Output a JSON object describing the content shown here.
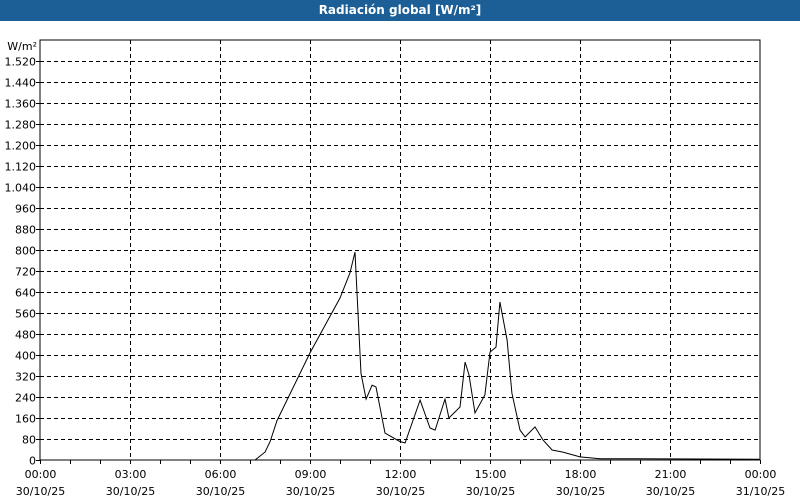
{
  "window": {
    "title": "Radiación global [W/m²]"
  },
  "chart_data": {
    "type": "line",
    "title": "Radiación global [W/m²]",
    "ylabel": "W/m²",
    "ylim": [
      0,
      1520
    ],
    "yticks": [
      0,
      80,
      160,
      240,
      320,
      400,
      480,
      560,
      640,
      720,
      800,
      880,
      960,
      1040,
      1120,
      1200,
      1280,
      1360,
      1440,
      1520
    ],
    "ytick_labels": [
      "0",
      "80",
      "160",
      "240",
      "320",
      "400",
      "480",
      "560",
      "640",
      "720",
      "800",
      "880",
      "960",
      "1.040",
      "1.120",
      "1.200",
      "1.280",
      "1.360",
      "1.440",
      "1.520"
    ],
    "xlim_hours": [
      0,
      24
    ],
    "xticks": [
      {
        "time": "00:00",
        "date": "30/10/25"
      },
      {
        "time": "03:00",
        "date": "30/10/25"
      },
      {
        "time": "06:00",
        "date": "30/10/25"
      },
      {
        "time": "09:00",
        "date": "30/10/25"
      },
      {
        "time": "12:00",
        "date": "30/10/25"
      },
      {
        "time": "15:00",
        "date": "30/10/25"
      },
      {
        "time": "18:00",
        "date": "30/10/25"
      },
      {
        "time": "21:00",
        "date": "30/10/25"
      },
      {
        "time": "00:00",
        "date": "31/10/25"
      }
    ],
    "grid": true,
    "line_color": "#000000",
    "series": [
      {
        "x_hours": [
          0,
          6.67,
          7.17,
          7.5,
          7.67,
          7.9,
          9.0,
          10.0,
          10.33,
          10.5,
          10.6,
          10.7,
          10.87,
          11.07,
          11.2,
          11.5,
          12.0,
          12.17,
          12.67,
          13.0,
          13.17,
          13.5,
          13.63,
          14.0,
          14.17,
          14.3,
          14.5,
          14.83,
          15.0,
          15.2,
          15.33,
          15.57,
          15.73,
          16.0,
          16.17,
          16.5,
          16.77,
          17.07,
          17.43,
          18.0,
          18.67,
          24
        ],
        "values": [
          0,
          0,
          0,
          30,
          70,
          150,
          408,
          617,
          712,
          792,
          560,
          330,
          232,
          285,
          278,
          103,
          70,
          65,
          228,
          122,
          114,
          232,
          160,
          202,
          373,
          324,
          179,
          248,
          411,
          430,
          602,
          457,
          255,
          114,
          88,
          126,
          76,
          38,
          30,
          12,
          5,
          3
        ]
      }
    ]
  }
}
